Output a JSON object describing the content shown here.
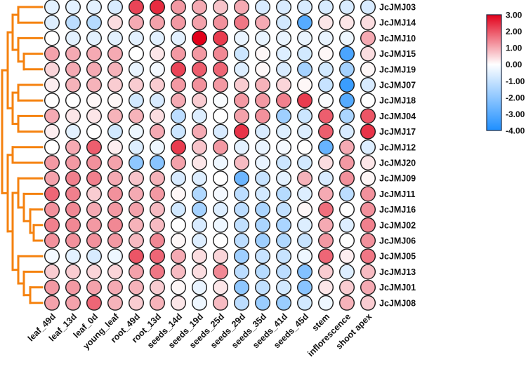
{
  "chart_data": {
    "type": "heatmap",
    "mark": "circle",
    "title": "",
    "columns": [
      "leaf_49d",
      "leaf_13d",
      "leaf_0d",
      "young_leaf",
      "root_49d",
      "root_13d",
      "seeds_14d",
      "seeds_19d",
      "seeds_25d",
      "seeds_29d",
      "seeds_35d",
      "seeds_41d",
      "seeds_45d",
      "stem",
      "inflorescence",
      "shoot apex"
    ],
    "rows": [
      "JcJMJ03",
      "JcJMJ14",
      "JcJMJ10",
      "JcJMJ15",
      "JcJMJ19",
      "JcJMJ07",
      "JcJMJ18",
      "JcJMJ04",
      "JcJMJ17",
      "JcJMJ12",
      "JcJMJ20",
      "JcJMJ09",
      "JcJMJ11",
      "JcJMJ16",
      "JcJMJ02",
      "JcJMJ06",
      "JcJMJ05",
      "JcJMJ13",
      "JcJMJ01",
      "JcJMJ08"
    ],
    "values": [
      [
        -0.5,
        -0.5,
        -0.5,
        -0.7,
        2.2,
        2.5,
        1.2,
        1.0,
        0.7,
        1.0,
        -0.7,
        -0.7,
        -0.7,
        -0.7,
        -0.7,
        -0.7
      ],
      [
        -0.6,
        -1.2,
        -1.3,
        0.4,
        1.0,
        1.1,
        1.2,
        1.1,
        1.3,
        1.6,
        1.0,
        -0.8,
        -3.0,
        0.3,
        0.3,
        0.4
      ],
      [
        0.0,
        -0.5,
        -0.5,
        -0.5,
        -0.5,
        -0.5,
        -0.5,
        3.0,
        2.3,
        -0.4,
        -0.4,
        -0.4,
        -0.4,
        -0.4,
        -0.3,
        1.0
      ],
      [
        1.1,
        1.0,
        1.0,
        1.0,
        0.0,
        0.3,
        1.2,
        1.2,
        1.4,
        -0.9,
        0.1,
        -0.6,
        -0.8,
        0.1,
        -3.2,
        0.4
      ],
      [
        0.5,
        1.0,
        1.0,
        0.9,
        -0.4,
        -0.2,
        2.2,
        1.9,
        1.8,
        -0.6,
        0.1,
        -0.7,
        -1.6,
        -0.8,
        -1.6,
        0.1
      ],
      [
        0.2,
        0.9,
        0.9,
        0.6,
        0.6,
        0.6,
        1.2,
        1.3,
        1.2,
        0.6,
        0.9,
        0.5,
        0.1,
        -1.0,
        -3.5,
        -0.7
      ],
      [
        0.0,
        0.0,
        0.1,
        0.1,
        -0.8,
        -0.7,
        1.0,
        0.6,
        -0.1,
        1.2,
        1.2,
        1.5,
        2.3,
        -0.1,
        -3.0,
        0.0
      ],
      [
        1.0,
        0.3,
        0.3,
        0.9,
        0.9,
        0.4,
        -1.2,
        -0.6,
        0.0,
        1.1,
        1.3,
        -1.7,
        -0.9,
        1.9,
        -1.5,
        2.0
      ],
      [
        0.2,
        -0.5,
        0.0,
        -0.8,
        -0.3,
        1.0,
        -0.9,
        1.0,
        -0.7,
        2.4,
        -0.7,
        -0.6,
        -0.6,
        1.9,
        -0.7,
        2.4
      ],
      [
        0.0,
        1.0,
        1.9,
        0.2,
        -0.6,
        -0.3,
        2.3,
        0.7,
        1.2,
        -0.5,
        -0.4,
        -0.2,
        0.0,
        -2.7,
        1.0,
        -0.6
      ],
      [
        1.2,
        1.2,
        1.3,
        1.1,
        -2.0,
        -2.1,
        1.1,
        0.3,
        -0.3,
        0.8,
        -0.4,
        -0.9,
        -0.8,
        0.4,
        1.2,
        0.3
      ],
      [
        1.1,
        1.5,
        1.5,
        1.0,
        0.7,
        0.9,
        -0.7,
        -0.6,
        0.0,
        -2.6,
        -1.0,
        -0.5,
        0.9,
        -0.7,
        1.3,
        0.1
      ],
      [
        1.8,
        1.5,
        0.6,
        1.3,
        1.0,
        1.2,
        0.1,
        -1.4,
        -0.2,
        -1.2,
        -0.8,
        -1.3,
        -0.6,
        1.0,
        -1.2,
        1.3
      ],
      [
        1.3,
        1.4,
        1.0,
        1.2,
        1.1,
        0.8,
        -0.8,
        -1.6,
        -0.6,
        -1.2,
        -1.5,
        -1.1,
        0.1,
        1.7,
        0.0,
        1.3
      ],
      [
        1.5,
        1.4,
        1.2,
        1.4,
        0.9,
        0.8,
        0.0,
        -0.7,
        -0.3,
        -1.1,
        -1.5,
        -1.5,
        -0.6,
        1.0,
        -0.6,
        1.5
      ],
      [
        1.3,
        1.3,
        1.3,
        1.2,
        0.8,
        1.4,
        0.1,
        -0.6,
        0.0,
        -1.2,
        -1.7,
        -1.4,
        -1.0,
        1.2,
        0.0,
        1.3
      ],
      [
        -0.2,
        -0.5,
        -0.7,
        -0.3,
        2.0,
        1.8,
        1.0,
        0.4,
        0.5,
        -1.7,
        -1.0,
        -1.0,
        -0.3,
        1.8,
        0.2,
        1.6
      ],
      [
        0.6,
        0.6,
        0.5,
        0.5,
        1.1,
        1.6,
        0.8,
        0.4,
        1.4,
        -1.2,
        -1.3,
        -1.2,
        -2.2,
        0.6,
        -0.6,
        0.8
      ],
      [
        1.2,
        1.2,
        1.1,
        1.0,
        0.9,
        0.6,
        0.1,
        -0.4,
        0.3,
        -2.0,
        -1.1,
        -0.8,
        -2.1,
        0.3,
        0.6,
        1.0
      ],
      [
        1.1,
        1.1,
        1.8,
        0.9,
        0.6,
        0.9,
        0.3,
        -0.3,
        0.8,
        -1.2,
        -1.8,
        -1.8,
        -0.8,
        -0.3,
        0.9,
        0.6
      ]
    ],
    "colorbar": {
      "range": [
        -4,
        3
      ],
      "tick_labels": [
        "3.00",
        "2.00",
        "1.00",
        "0.00",
        "-1.00",
        "-2.00",
        "-3.00",
        "-4.00"
      ],
      "low_color": "#1E8FFF",
      "mid_color": "#FFFFFF",
      "high_color": "#E2001A",
      "placement": "top-right"
    },
    "dendrogram": {
      "side": "left",
      "color": "#F5820F"
    }
  }
}
